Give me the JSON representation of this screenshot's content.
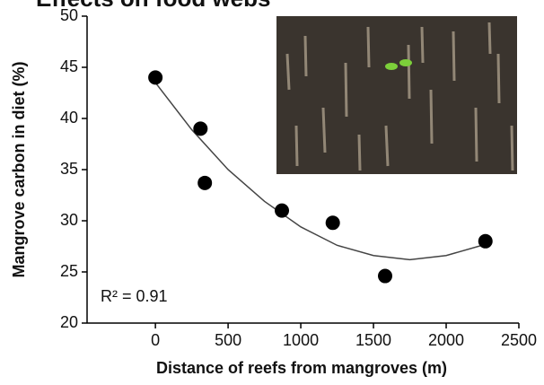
{
  "chart_data": {
    "type": "scatter",
    "title": "Effects on food webs",
    "xlabel": "Distance of reefs from mangroves (m)",
    "ylabel": "Mangrove carbon in diet (%)",
    "annotation": "R² = 0.91",
    "x": [
      0,
      310,
      340,
      870,
      1220,
      1580,
      2270
    ],
    "values": [
      44,
      39,
      33.7,
      31,
      29.8,
      24.6,
      28
    ],
    "color": "#000000",
    "fit": {
      "x": [
        0,
        250,
        500,
        750,
        1000,
        1250,
        1500,
        1750,
        2000,
        2270
      ],
      "values": [
        43.5,
        38.9,
        35.0,
        31.9,
        29.4,
        27.6,
        26.6,
        26.2,
        26.6,
        27.7
      ],
      "color": "#444444"
    },
    "xlim": [
      -470,
      2500
    ],
    "ylim": [
      20,
      50
    ],
    "xticks": [
      0,
      500,
      1000,
      1500,
      2000,
      2500
    ],
    "yticks": [
      20,
      25,
      30,
      35,
      40,
      45,
      50
    ]
  }
}
